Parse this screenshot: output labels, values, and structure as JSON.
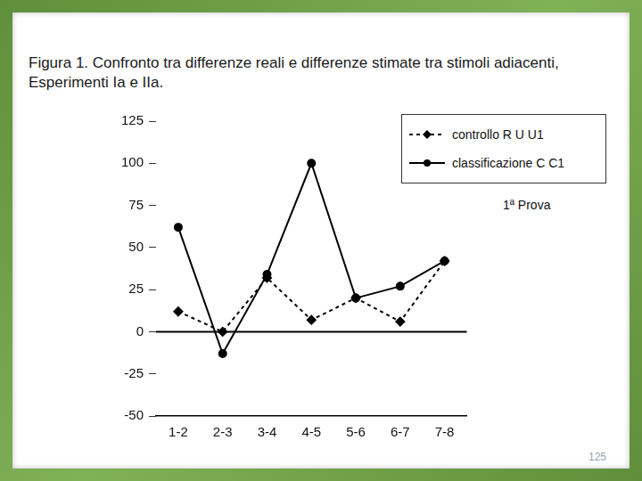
{
  "chart_data": {
    "type": "line",
    "title": "Figura 1. Confronto tra differenze reali e differenze stimate tra stimoli adiacenti, Esperimenti Ia e IIa.",
    "categories": [
      "1-2",
      "2-3",
      "3-4",
      "4-5",
      "5-6",
      "6-7",
      "7-8"
    ],
    "series": [
      {
        "name": "controllo R U U1",
        "color": "#000000",
        "marker": "diamond",
        "line_style": "dashed",
        "values": [
          12,
          0,
          32,
          7,
          20,
          6,
          42
        ]
      },
      {
        "name": "classificazione C C1",
        "color": "#000000",
        "marker": "circle",
        "line_style": "solid",
        "values": [
          62,
          -13,
          34,
          100,
          20,
          27,
          42
        ]
      }
    ],
    "ylim": [
      -50,
      125
    ],
    "yticks": [
      -50,
      -25,
      0,
      25,
      50,
      75,
      100,
      125
    ],
    "grid": false,
    "legend": "upper right",
    "annotations": [
      "1ª Prova"
    ]
  },
  "page_number": "125"
}
